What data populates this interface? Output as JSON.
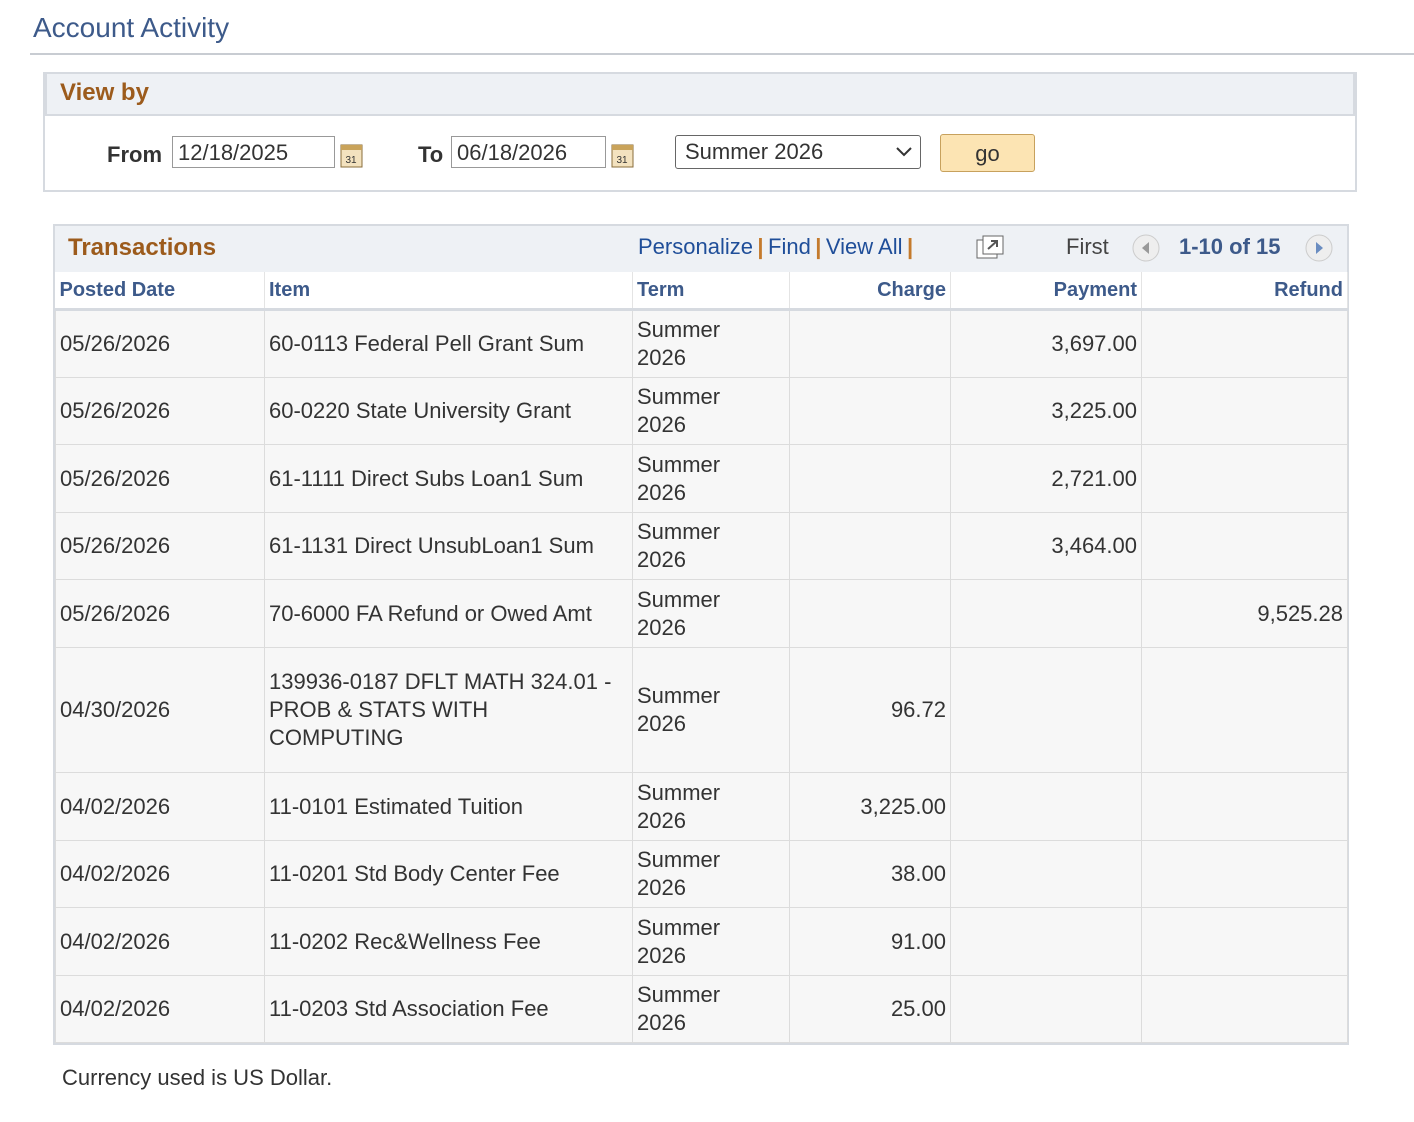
{
  "page_title": "Account Activity",
  "view_by": {
    "title": "View by",
    "from_label": "From",
    "from_date": "12/18/2025",
    "to_label": "To",
    "to_date": "06/18/2026",
    "term_select": "Summer 2026",
    "go_button": "go"
  },
  "transactions": {
    "title": "Transactions",
    "links": [
      "Personalize",
      "Find",
      "View All"
    ],
    "first": "First",
    "range": "1-10 of 15",
    "columns": [
      "Posted Date",
      "Item",
      "Term",
      "Charge",
      "Payment",
      "Refund"
    ],
    "rows": [
      {
        "posted_date": "05/26/2026",
        "item": "60-0113 Federal Pell Grant Sum",
        "term": "Summer 2026",
        "payment": "3,697.00"
      },
      {
        "posted_date": "05/26/2026",
        "item": "60-0220 State University Grant",
        "term": "Summer 2026",
        "payment": "3,225.00"
      },
      {
        "posted_date": "05/26/2026",
        "item": "61-1111 Direct Subs Loan1 Sum",
        "term": "Summer 2026",
        "payment": "2,721.00"
      },
      {
        "posted_date": "05/26/2026",
        "item": "61-1131 Direct UnsubLoan1 Sum",
        "term": "Summer 2026",
        "payment": "3,464.00"
      },
      {
        "posted_date": "05/26/2026",
        "item": "70-6000 FA Refund or Owed Amt",
        "term": "Summer 2026",
        "refund": "9,525.28"
      },
      {
        "posted_date": "04/30/2026",
        "item": "139936-0187 DFLT MATH 324.01 - PROB & STATS WITH COMPUTING",
        "term": "Summer 2026",
        "charge": "96.72"
      },
      {
        "posted_date": "04/02/2026",
        "item": "11-0101 Estimated Tuition",
        "term": "Summer 2026",
        "charge": "3,225.00"
      },
      {
        "posted_date": "04/02/2026",
        "item": "11-0201 Std Body Center Fee",
        "term": "Summer 2026",
        "charge": "38.00"
      },
      {
        "posted_date": "04/02/2026",
        "item": "11-0202 Rec&Wellness Fee",
        "term": "Summer 2026",
        "charge": "91.00"
      },
      {
        "posted_date": "04/02/2026",
        "item": "11-0203 Std Association Fee",
        "term": "Summer 2026",
        "charge": "25.00"
      }
    ]
  },
  "footer_note": "Currency used is US Dollar."
}
